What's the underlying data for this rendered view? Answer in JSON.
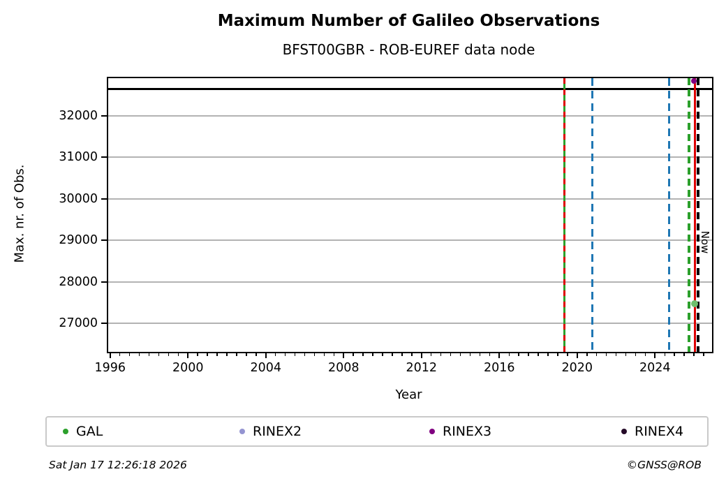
{
  "header": {
    "title": "Maximum Number of Galileo Observations",
    "subtitle": "BFST00GBR - ROB-EUREF data node"
  },
  "footer": {
    "timestamp": "Sat Jan 17 12:26:18 2026",
    "credit": "©GNSS@ROB"
  },
  "legend": {
    "items": [
      {
        "label": "GAL",
        "color": "#2ca02c"
      },
      {
        "label": "RINEX2",
        "color": "#9494d1"
      },
      {
        "label": "RINEX3",
        "color": "#800080"
      },
      {
        "label": "RINEX4",
        "color": "#250a28"
      }
    ]
  },
  "chart_data": {
    "type": "line",
    "title": "Maximum Number of Galileo Observations",
    "subtitle": "BFST00GBR - ROB-EUREF data node",
    "xlabel": "Year",
    "ylabel": "Max. nr. of Obs.",
    "grid": "horizontal-only",
    "legend_position": "bottom",
    "x_axis": {
      "min": 1995.9,
      "max": 2026.93,
      "major_ticks": [
        1996,
        2000,
        2004,
        2008,
        2012,
        2016,
        2020,
        2024
      ],
      "minor_step": 0.5
    },
    "y_axis": {
      "min": 26310,
      "max": 32910,
      "ticks": [
        27000,
        28000,
        29000,
        30000,
        31000,
        32000
      ]
    },
    "hlines": [
      {
        "value": 32650,
        "color": "#000000",
        "style": "solid",
        "width": 3
      }
    ],
    "vlines": [
      {
        "year": 2019.33,
        "color": "#2ca02c",
        "style": "solid",
        "width": 3
      },
      {
        "year": 2019.33,
        "color": "#dd0000",
        "style": "dashed",
        "width": 3,
        "dash": 8,
        "gap": 8
      },
      {
        "year": 2020.76,
        "color": "#1f77b4",
        "style": "dashed",
        "width": 3,
        "dash": 11,
        "gap": 7
      },
      {
        "year": 2024.74,
        "color": "#1f77b4",
        "style": "dashed",
        "width": 3,
        "dash": 11,
        "gap": 7
      },
      {
        "year": 2025.74,
        "color": "#2ca02c",
        "style": "dashed",
        "width": 4,
        "dash": 10,
        "gap": 6
      },
      {
        "year": 2026.05,
        "color": "#dd0000",
        "style": "solid",
        "width": 3,
        "label": "Now"
      },
      {
        "year": 2026.23,
        "color": "#000000",
        "style": "dashed",
        "width": 4,
        "dash": 10,
        "gap": 6
      }
    ],
    "points": [
      {
        "year": 2025.99,
        "value": 32840,
        "color": "#800080",
        "radius": 4
      },
      {
        "year": 2026.03,
        "value": 27470,
        "color": "#6dbf6d",
        "radius": 5
      }
    ],
    "now_label": "Now"
  }
}
